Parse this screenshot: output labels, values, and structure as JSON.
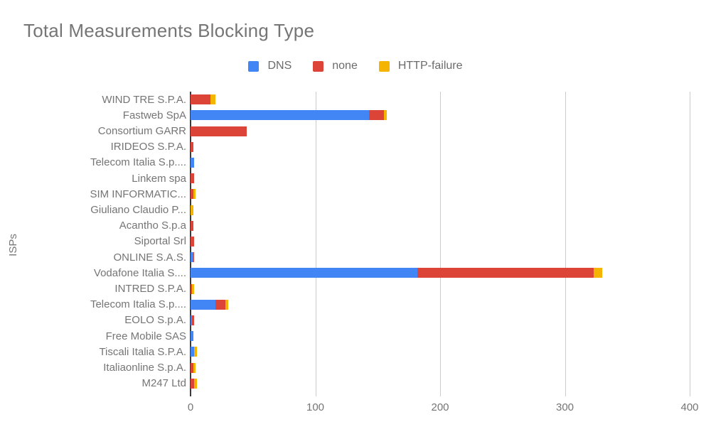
{
  "title": "Total Measurements Blocking Type",
  "y_axis_label": "ISPs",
  "colors": {
    "dns": "#4285F4",
    "none": "#DB4437",
    "http_failure": "#F4B400",
    "gridline": "#cccccc",
    "baseline": "#3b3b3b",
    "text": "#757575"
  },
  "chart_data": {
    "type": "bar",
    "orientation": "horizontal",
    "stacked": true,
    "title": "Total Measurements Blocking Type",
    "xlabel": "",
    "ylabel": "ISPs",
    "xlim": [
      0,
      400
    ],
    "x_ticks": [
      0,
      100,
      200,
      300,
      400
    ],
    "grid": true,
    "legend_position": "top",
    "categories": [
      "WIND TRE S.P.A.",
      "Fastweb SpA",
      "Consortium GARR",
      "IRIDEOS S.P.A.",
      "Telecom Italia S.p....",
      "Linkem spa",
      "SIM INFORMATIC...",
      "Giuliano Claudio P...",
      "Acantho S.p.a",
      "Siportal Srl",
      "ONLINE S.A.S.",
      "Vodafone Italia S....",
      "INTRED S.P.A.",
      "Telecom Italia S.p....",
      "EOLO S.p.A.",
      "Free Mobile SAS",
      "Tiscali Italia S.P.A.",
      "Italiaonline S.p.A.",
      "M247 Ltd"
    ],
    "series": [
      {
        "name": "DNS",
        "color": "#4285F4",
        "values": [
          0,
          143,
          0,
          0,
          3,
          0,
          0,
          0,
          0,
          0,
          2,
          182,
          0,
          20,
          1,
          2,
          3,
          0,
          0
        ]
      },
      {
        "name": "none",
        "color": "#DB4437",
        "values": [
          16,
          12,
          45,
          2,
          0,
          3,
          2,
          0,
          2,
          3,
          1,
          141,
          1,
          8,
          2,
          0,
          0,
          2,
          3
        ]
      },
      {
        "name": "HTTP-failure",
        "color": "#F4B400",
        "values": [
          4,
          2,
          0,
          0,
          0,
          0,
          2,
          2,
          0,
          0,
          0,
          7,
          2,
          2,
          0,
          0,
          2,
          2,
          2
        ]
      }
    ]
  }
}
